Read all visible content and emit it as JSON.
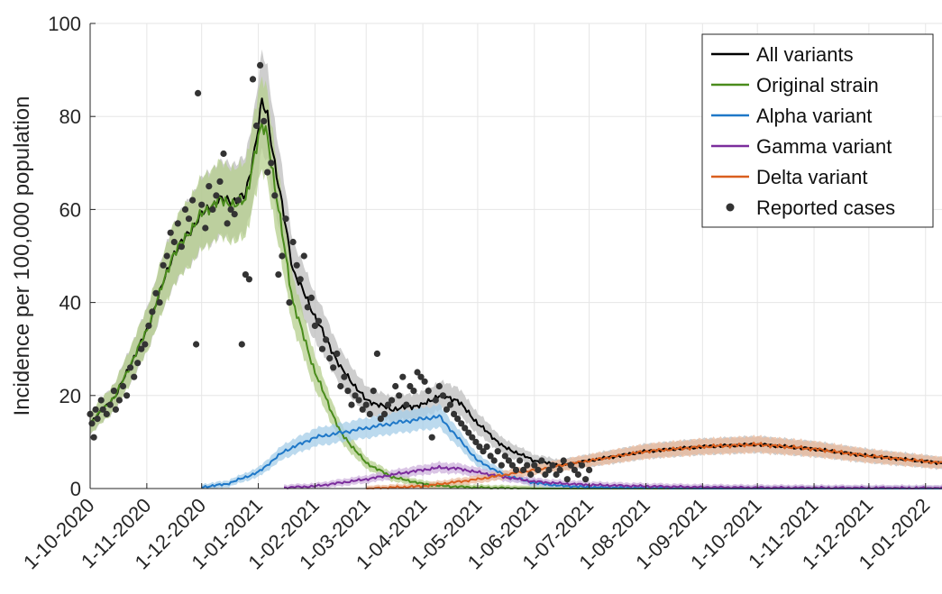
{
  "chart_data": {
    "type": "line",
    "ylabel": "Incidence per 100,000 population",
    "xlabel": "",
    "ylim": [
      0,
      100
    ],
    "xlim": [
      "2020-10-01",
      "2022-01-10"
    ],
    "yticks": [
      "0",
      "20",
      "40",
      "60",
      "80",
      "100"
    ],
    "xticks": [
      {
        "date": "2020-10-01",
        "label": "1-10-2020"
      },
      {
        "date": "2020-11-01",
        "label": "1-11-2020"
      },
      {
        "date": "2020-12-01",
        "label": "1-12-2020"
      },
      {
        "date": "2021-01-01",
        "label": "1-01-2021"
      },
      {
        "date": "2021-02-01",
        "label": "1-02-2021"
      },
      {
        "date": "2021-03-01",
        "label": "1-03-2021"
      },
      {
        "date": "2021-04-01",
        "label": "1-04-2021"
      },
      {
        "date": "2021-05-01",
        "label": "1-05-2021"
      },
      {
        "date": "2021-06-01",
        "label": "1-06-2021"
      },
      {
        "date": "2021-07-01",
        "label": "1-07-2021"
      },
      {
        "date": "2021-08-01",
        "label": "1-08-2021"
      },
      {
        "date": "2021-09-01",
        "label": "1-09-2021"
      },
      {
        "date": "2021-10-01",
        "label": "1-10-2021"
      },
      {
        "date": "2021-11-01",
        "label": "1-11-2021"
      },
      {
        "date": "2021-12-01",
        "label": "1-12-2021"
      },
      {
        "date": "2022-01-01",
        "label": "1-01-2022"
      }
    ],
    "grid": true,
    "legend_position": "top-right",
    "series": [
      {
        "name": "All variants",
        "color": "#000000",
        "band_color": "#bdbdbd",
        "x": [
          "2020-10-01",
          "2020-10-15",
          "2020-11-01",
          "2020-11-15",
          "2020-12-01",
          "2020-12-10",
          "2020-12-20",
          "2020-12-25",
          "2020-12-30",
          "2021-01-03",
          "2021-01-06",
          "2021-01-10",
          "2021-01-20",
          "2021-02-01",
          "2021-02-15",
          "2021-03-01",
          "2021-03-15",
          "2021-04-01",
          "2021-04-10",
          "2021-04-20",
          "2021-05-01",
          "2021-05-15",
          "2021-06-01",
          "2021-06-15",
          "2021-07-01",
          "2021-08-01",
          "2021-09-01",
          "2021-10-01",
          "2021-11-01",
          "2021-12-01",
          "2022-01-10"
        ],
        "y": [
          14,
          20,
          34,
          50,
          59,
          62,
          62,
          63,
          73,
          83,
          80,
          70,
          47,
          37,
          26,
          19,
          17,
          18,
          20,
          19,
          14,
          9,
          6,
          5,
          6,
          8,
          9,
          9.5,
          8.5,
          7,
          5.5
        ]
      },
      {
        "name": "Original strain",
        "color": "#4a8c1c",
        "band_color": "#b5cf8e",
        "x": [
          "2020-10-01",
          "2020-10-15",
          "2020-11-01",
          "2020-11-15",
          "2020-12-01",
          "2020-12-10",
          "2020-12-20",
          "2020-12-25",
          "2020-12-30",
          "2021-01-03",
          "2021-01-06",
          "2021-01-10",
          "2021-01-20",
          "2021-02-01",
          "2021-02-15",
          "2021-03-01",
          "2021-03-15",
          "2021-04-01",
          "2021-04-10",
          "2021-04-20",
          "2021-05-01",
          "2021-06-01",
          "2022-01-10"
        ],
        "y": [
          14,
          20,
          34,
          50,
          59,
          62,
          61,
          62,
          72,
          78,
          76,
          65,
          40,
          25,
          12,
          5.5,
          2.5,
          1,
          0.6,
          0.4,
          0.2,
          0,
          0
        ]
      },
      {
        "name": "Alpha variant",
        "color": "#1f78c8",
        "band_color": "#a6cde8",
        "x": [
          "2020-12-01",
          "2020-12-15",
          "2021-01-01",
          "2021-01-15",
          "2021-02-01",
          "2021-02-15",
          "2021-03-01",
          "2021-03-15",
          "2021-04-01",
          "2021-04-10",
          "2021-04-20",
          "2021-05-01",
          "2021-05-15",
          "2021-06-01",
          "2021-06-15",
          "2021-07-01",
          "2021-08-01",
          "2021-09-01",
          "2022-01-10"
        ],
        "y": [
          0.3,
          1,
          3.5,
          8,
          11,
          12,
          13,
          14,
          15,
          15.5,
          11,
          6,
          3,
          1.2,
          0.6,
          0.3,
          0.1,
          0,
          0
        ]
      },
      {
        "name": "Gamma variant",
        "color": "#7b2d9c",
        "band_color": "#cdb2dc",
        "x": [
          "2021-01-15",
          "2021-02-01",
          "2021-03-01",
          "2021-03-20",
          "2021-04-01",
          "2021-04-10",
          "2021-04-20",
          "2021-05-01",
          "2021-05-15",
          "2021-06-01",
          "2021-06-15",
          "2021-07-01",
          "2021-08-01",
          "2021-09-01",
          "2021-10-01",
          "2022-01-10"
        ],
        "y": [
          0.2,
          0.5,
          2,
          3.3,
          4,
          4.5,
          4.3,
          3.5,
          2.5,
          1.5,
          1.1,
          0.8,
          0.5,
          0.3,
          0.2,
          0.1
        ]
      },
      {
        "name": "Delta variant",
        "color": "#d95f1e",
        "band_color": "#e9b99c",
        "x": [
          "2021-03-01",
          "2021-04-01",
          "2021-05-01",
          "2021-06-01",
          "2021-07-01",
          "2021-08-01",
          "2021-09-01",
          "2021-09-20",
          "2021-10-01",
          "2021-11-01",
          "2021-12-01",
          "2022-01-10"
        ],
        "y": [
          0,
          0.5,
          2,
          4,
          6,
          8,
          9,
          9.3,
          9.5,
          8.5,
          7,
          5.5
        ]
      }
    ],
    "reported_cases": {
      "name": "Reported cases",
      "color": "#333333",
      "points": [
        [
          "2020-10-01",
          16
        ],
        [
          "2020-10-02",
          14
        ],
        [
          "2020-10-03",
          11
        ],
        [
          "2020-10-04",
          17
        ],
        [
          "2020-10-05",
          15
        ],
        [
          "2020-10-07",
          19
        ],
        [
          "2020-10-08",
          17
        ],
        [
          "2020-10-10",
          16
        ],
        [
          "2020-10-12",
          18
        ],
        [
          "2020-10-14",
          21
        ],
        [
          "2020-10-15",
          17
        ],
        [
          "2020-10-17",
          19
        ],
        [
          "2020-10-19",
          22
        ],
        [
          "2020-10-21",
          20
        ],
        [
          "2020-10-23",
          26
        ],
        [
          "2020-10-25",
          24
        ],
        [
          "2020-10-27",
          27
        ],
        [
          "2020-10-29",
          30
        ],
        [
          "2020-10-31",
          31
        ],
        [
          "2020-11-02",
          35
        ],
        [
          "2020-11-04",
          38
        ],
        [
          "2020-11-06",
          42
        ],
        [
          "2020-11-08",
          40
        ],
        [
          "2020-11-10",
          48
        ],
        [
          "2020-11-12",
          50
        ],
        [
          "2020-11-14",
          55
        ],
        [
          "2020-11-16",
          53
        ],
        [
          "2020-11-18",
          57
        ],
        [
          "2020-11-20",
          52
        ],
        [
          "2020-11-22",
          60
        ],
        [
          "2020-11-24",
          58
        ],
        [
          "2020-11-26",
          62
        ],
        [
          "2020-11-28",
          31
        ],
        [
          "2020-11-29",
          85
        ],
        [
          "2020-12-01",
          61
        ],
        [
          "2020-12-03",
          56
        ],
        [
          "2020-12-05",
          65
        ],
        [
          "2020-12-07",
          60
        ],
        [
          "2020-12-09",
          63
        ],
        [
          "2020-12-11",
          66
        ],
        [
          "2020-12-13",
          72
        ],
        [
          "2020-12-15",
          57
        ],
        [
          "2020-12-17",
          60
        ],
        [
          "2020-12-19",
          59
        ],
        [
          "2020-12-21",
          62
        ],
        [
          "2020-12-23",
          31
        ],
        [
          "2020-12-25",
          46
        ],
        [
          "2020-12-27",
          45
        ],
        [
          "2020-12-29",
          88
        ],
        [
          "2020-12-31",
          78
        ],
        [
          "2021-01-02",
          91
        ],
        [
          "2021-01-04",
          79
        ],
        [
          "2021-01-06",
          68
        ],
        [
          "2021-01-08",
          70
        ],
        [
          "2021-01-10",
          63
        ],
        [
          "2021-01-12",
          46
        ],
        [
          "2021-01-14",
          50
        ],
        [
          "2021-01-16",
          58
        ],
        [
          "2021-01-18",
          40
        ],
        [
          "2021-01-20",
          53
        ],
        [
          "2021-01-22",
          48
        ],
        [
          "2021-01-24",
          45
        ],
        [
          "2021-01-26",
          50
        ],
        [
          "2021-01-28",
          39
        ],
        [
          "2021-01-30",
          41
        ],
        [
          "2021-02-01",
          35
        ],
        [
          "2021-02-03",
          36
        ],
        [
          "2021-02-05",
          30
        ],
        [
          "2021-02-07",
          32
        ],
        [
          "2021-02-09",
          28
        ],
        [
          "2021-02-11",
          26
        ],
        [
          "2021-02-13",
          29
        ],
        [
          "2021-02-15",
          22
        ],
        [
          "2021-02-17",
          24
        ],
        [
          "2021-02-19",
          21
        ],
        [
          "2021-02-21",
          18
        ],
        [
          "2021-02-23",
          20
        ],
        [
          "2021-02-25",
          19
        ],
        [
          "2021-02-27",
          17
        ],
        [
          "2021-03-01",
          18
        ],
        [
          "2021-03-03",
          16
        ],
        [
          "2021-03-05",
          21
        ],
        [
          "2021-03-07",
          29
        ],
        [
          "2021-03-09",
          15
        ],
        [
          "2021-03-11",
          16
        ],
        [
          "2021-03-13",
          18
        ],
        [
          "2021-03-15",
          19
        ],
        [
          "2021-03-17",
          22
        ],
        [
          "2021-03-19",
          20
        ],
        [
          "2021-03-21",
          24
        ],
        [
          "2021-03-23",
          18
        ],
        [
          "2021-03-25",
          22
        ],
        [
          "2021-03-27",
          21
        ],
        [
          "2021-03-29",
          25
        ],
        [
          "2021-03-31",
          24
        ],
        [
          "2021-04-02",
          23
        ],
        [
          "2021-04-04",
          21
        ],
        [
          "2021-04-06",
          11
        ],
        [
          "2021-04-08",
          19
        ],
        [
          "2021-04-10",
          22
        ],
        [
          "2021-04-12",
          20
        ],
        [
          "2021-04-14",
          17
        ],
        [
          "2021-04-16",
          18
        ],
        [
          "2021-04-18",
          16
        ],
        [
          "2021-04-20",
          15
        ],
        [
          "2021-04-22",
          14
        ],
        [
          "2021-04-24",
          13
        ],
        [
          "2021-04-26",
          12
        ],
        [
          "2021-04-28",
          11
        ],
        [
          "2021-04-30",
          10
        ],
        [
          "2021-05-02",
          9
        ],
        [
          "2021-05-04",
          8
        ],
        [
          "2021-05-06",
          9
        ],
        [
          "2021-05-08",
          7
        ],
        [
          "2021-05-10",
          6
        ],
        [
          "2021-05-12",
          8
        ],
        [
          "2021-05-14",
          5
        ],
        [
          "2021-05-16",
          7
        ],
        [
          "2021-05-18",
          6
        ],
        [
          "2021-05-20",
          5
        ],
        [
          "2021-05-22",
          4
        ],
        [
          "2021-05-24",
          6
        ],
        [
          "2021-05-26",
          4
        ],
        [
          "2021-05-28",
          5
        ],
        [
          "2021-05-30",
          3
        ],
        [
          "2021-06-01",
          5
        ],
        [
          "2021-06-03",
          4
        ],
        [
          "2021-06-05",
          6
        ],
        [
          "2021-06-07",
          3
        ],
        [
          "2021-06-09",
          4
        ],
        [
          "2021-06-11",
          5
        ],
        [
          "2021-06-13",
          3
        ],
        [
          "2021-06-15",
          4
        ],
        [
          "2021-06-17",
          6
        ],
        [
          "2021-06-19",
          2
        ],
        [
          "2021-06-21",
          5
        ],
        [
          "2021-06-23",
          4
        ],
        [
          "2021-06-25",
          3
        ],
        [
          "2021-06-27",
          5
        ],
        [
          "2021-06-29",
          2
        ],
        [
          "2021-07-01",
          4
        ]
      ]
    }
  }
}
